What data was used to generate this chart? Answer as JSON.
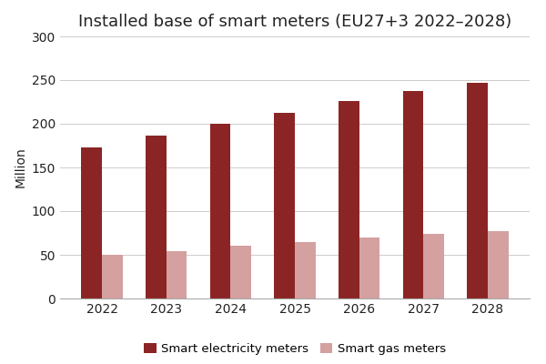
{
  "title": "Installed base of smart meters (EU27+3 2022–2028)",
  "ylabel": "Million",
  "years": [
    2022,
    2023,
    2024,
    2025,
    2026,
    2027,
    2028
  ],
  "electricity_values": [
    173,
    186,
    200,
    213,
    226,
    237,
    247
  ],
  "gas_values": [
    50,
    54,
    60,
    65,
    70,
    74,
    77
  ],
  "electricity_color": "#8B2525",
  "gas_color": "#D4A0A0",
  "ylim": [
    0,
    300
  ],
  "yticks": [
    0,
    50,
    100,
    150,
    200,
    250,
    300
  ],
  "legend_labels": [
    "Smart electricity meters",
    "Smart gas meters"
  ],
  "bar_width": 0.32,
  "background_color": "#ffffff",
  "title_fontsize": 13,
  "axis_fontsize": 10,
  "tick_fontsize": 10,
  "legend_fontsize": 9.5
}
